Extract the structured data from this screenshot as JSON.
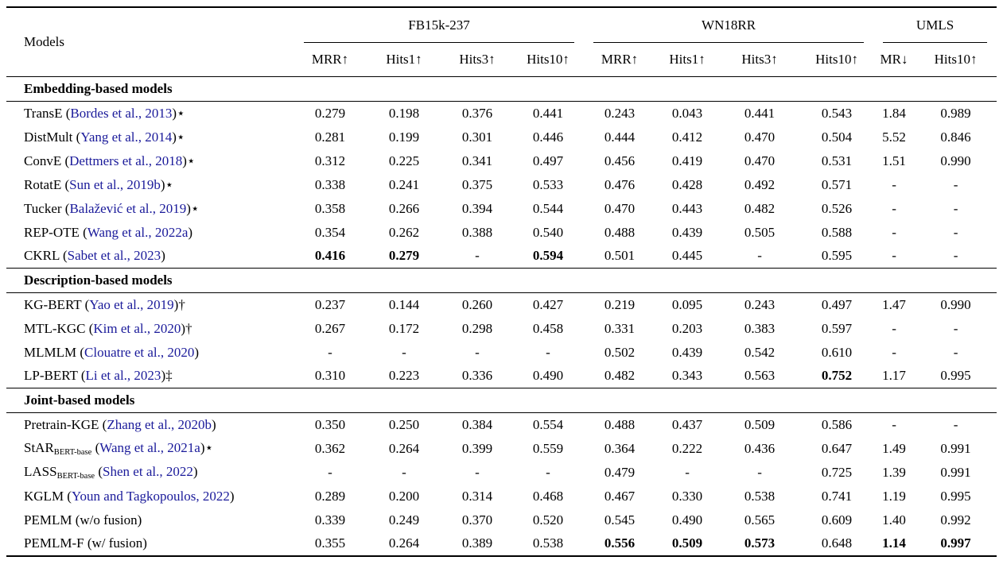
{
  "table": {
    "models_header": "Models",
    "groups": [
      {
        "label": "FB15k-237",
        "cols": [
          "MRR↑",
          "Hits1↑",
          "Hits3↑",
          "Hits10↑"
        ]
      },
      {
        "label": "WN18RR",
        "cols": [
          "MRR↑",
          "Hits1↑",
          "Hits3↑",
          "Hits10↑"
        ]
      },
      {
        "label": "UMLS",
        "cols": [
          "MR↓",
          "Hits10↑"
        ]
      }
    ],
    "colors": {
      "citation": "#1a1a9a",
      "text": "#000000",
      "background": "#ffffff"
    },
    "sections": [
      {
        "title": "Embedding-based models",
        "rows": [
          {
            "parts": [
              {
                "t": "TransE ("
              },
              {
                "t": "Bordes et al., 2013",
                "cite": true
              },
              {
                "t": ")⋆"
              }
            ],
            "values": [
              "0.279",
              "0.198",
              "0.376",
              "0.441",
              "0.243",
              "0.043",
              "0.441",
              "0.543",
              "1.84",
              "0.989"
            ],
            "bold": []
          },
          {
            "parts": [
              {
                "t": "DistMult ("
              },
              {
                "t": "Yang et al., 2014",
                "cite": true
              },
              {
                "t": ")⋆"
              }
            ],
            "values": [
              "0.281",
              "0.199",
              "0.301",
              "0.446",
              "0.444",
              "0.412",
              "0.470",
              "0.504",
              "5.52",
              "0.846"
            ],
            "bold": []
          },
          {
            "parts": [
              {
                "t": "ConvE ("
              },
              {
                "t": "Dettmers et al., 2018",
                "cite": true
              },
              {
                "t": ")⋆"
              }
            ],
            "values": [
              "0.312",
              "0.225",
              "0.341",
              "0.497",
              "0.456",
              "0.419",
              "0.470",
              "0.531",
              "1.51",
              "0.990"
            ],
            "bold": []
          },
          {
            "parts": [
              {
                "t": "RotatE ("
              },
              {
                "t": "Sun et al., 2019b",
                "cite": true
              },
              {
                "t": ")⋆"
              }
            ],
            "values": [
              "0.338",
              "0.241",
              "0.375",
              "0.533",
              "0.476",
              "0.428",
              "0.492",
              "0.571",
              "-",
              "-"
            ],
            "bold": []
          },
          {
            "parts": [
              {
                "t": "Tucker ("
              },
              {
                "t": "Balažević et al., 2019",
                "cite": true
              },
              {
                "t": ")⋆"
              }
            ],
            "values": [
              "0.358",
              "0.266",
              "0.394",
              "0.544",
              "0.470",
              "0.443",
              "0.482",
              "0.526",
              "-",
              "-"
            ],
            "bold": []
          },
          {
            "parts": [
              {
                "t": "REP-OTE ("
              },
              {
                "t": "Wang et al., 2022a",
                "cite": true
              },
              {
                "t": ")"
              }
            ],
            "values": [
              "0.354",
              "0.262",
              "0.388",
              "0.540",
              "0.488",
              "0.439",
              "0.505",
              "0.588",
              "-",
              "-"
            ],
            "bold": []
          },
          {
            "parts": [
              {
                "t": "CKRL ("
              },
              {
                "t": "Sabet et al., 2023",
                "cite": true
              },
              {
                "t": ")"
              }
            ],
            "values": [
              "0.416",
              "0.279",
              "-",
              "0.594",
              "0.501",
              "0.445",
              "-",
              "0.595",
              "-",
              "-"
            ],
            "bold": [
              0,
              1,
              3
            ]
          }
        ]
      },
      {
        "title": "Description-based models",
        "rows": [
          {
            "parts": [
              {
                "t": "KG-BERT ("
              },
              {
                "t": "Yao et al., 2019",
                "cite": true
              },
              {
                "t": ")†"
              }
            ],
            "values": [
              "0.237",
              "0.144",
              "0.260",
              "0.427",
              "0.219",
              "0.095",
              "0.243",
              "0.497",
              "1.47",
              "0.990"
            ],
            "bold": []
          },
          {
            "parts": [
              {
                "t": "MTL-KGC ("
              },
              {
                "t": "Kim et al., 2020",
                "cite": true
              },
              {
                "t": ")†"
              }
            ],
            "values": [
              "0.267",
              "0.172",
              "0.298",
              "0.458",
              "0.331",
              "0.203",
              "0.383",
              "0.597",
              "-",
              "-"
            ],
            "bold": []
          },
          {
            "parts": [
              {
                "t": "MLMLM ("
              },
              {
                "t": "Clouatre et al., 2020",
                "cite": true
              },
              {
                "t": ")"
              }
            ],
            "values": [
              "-",
              "-",
              "-",
              "-",
              "0.502",
              "0.439",
              "0.542",
              "0.610",
              "-",
              "-"
            ],
            "bold": []
          },
          {
            "parts": [
              {
                "t": "LP-BERT ("
              },
              {
                "t": "Li et al., 2023",
                "cite": true
              },
              {
                "t": ")‡"
              }
            ],
            "values": [
              "0.310",
              "0.223",
              "0.336",
              "0.490",
              "0.482",
              "0.343",
              "0.563",
              "0.752",
              "1.17",
              "0.995"
            ],
            "bold": [
              7
            ]
          }
        ]
      },
      {
        "title": "Joint-based models",
        "rows": [
          {
            "parts": [
              {
                "t": "Pretrain-KGE ("
              },
              {
                "t": "Zhang et al., 2020b",
                "cite": true
              },
              {
                "t": ")"
              }
            ],
            "values": [
              "0.350",
              "0.250",
              "0.384",
              "0.554",
              "0.488",
              "0.437",
              "0.509",
              "0.586",
              "-",
              "-"
            ],
            "bold": []
          },
          {
            "parts": [
              {
                "t": "StAR"
              },
              {
                "t": "BERT-base",
                "sub": true
              },
              {
                "t": " ("
              },
              {
                "t": "Wang et al., 2021a",
                "cite": true
              },
              {
                "t": ")⋆"
              }
            ],
            "values": [
              "0.362",
              "0.264",
              "0.399",
              "0.559",
              "0.364",
              "0.222",
              "0.436",
              "0.647",
              "1.49",
              "0.991"
            ],
            "bold": []
          },
          {
            "parts": [
              {
                "t": "LASS"
              },
              {
                "t": "BERT-base",
                "sub": true
              },
              {
                "t": " ("
              },
              {
                "t": "Shen et al., 2022",
                "cite": true
              },
              {
                "t": ")"
              }
            ],
            "values": [
              "-",
              "-",
              "-",
              "-",
              "0.479",
              "-",
              "-",
              "0.725",
              "1.39",
              "0.991"
            ],
            "bold": []
          },
          {
            "parts": [
              {
                "t": "KGLM ("
              },
              {
                "t": "Youn and Tagkopoulos, 2022",
                "cite": true
              },
              {
                "t": ")"
              }
            ],
            "values": [
              "0.289",
              "0.200",
              "0.314",
              "0.468",
              "0.467",
              "0.330",
              "0.538",
              "0.741",
              "1.19",
              "0.995"
            ],
            "bold": []
          },
          {
            "parts": [
              {
                "t": "PEMLM (w/o fusion)"
              }
            ],
            "values": [
              "0.339",
              "0.249",
              "0.370",
              "0.520",
              "0.545",
              "0.490",
              "0.565",
              "0.609",
              "1.40",
              "0.992"
            ],
            "bold": []
          },
          {
            "parts": [
              {
                "t": "PEMLM-F (w/ fusion)"
              }
            ],
            "values": [
              "0.355",
              "0.264",
              "0.389",
              "0.538",
              "0.556",
              "0.509",
              "0.573",
              "0.648",
              "1.14",
              "0.997"
            ],
            "bold": [
              4,
              5,
              6,
              8,
              9
            ]
          }
        ]
      }
    ]
  }
}
